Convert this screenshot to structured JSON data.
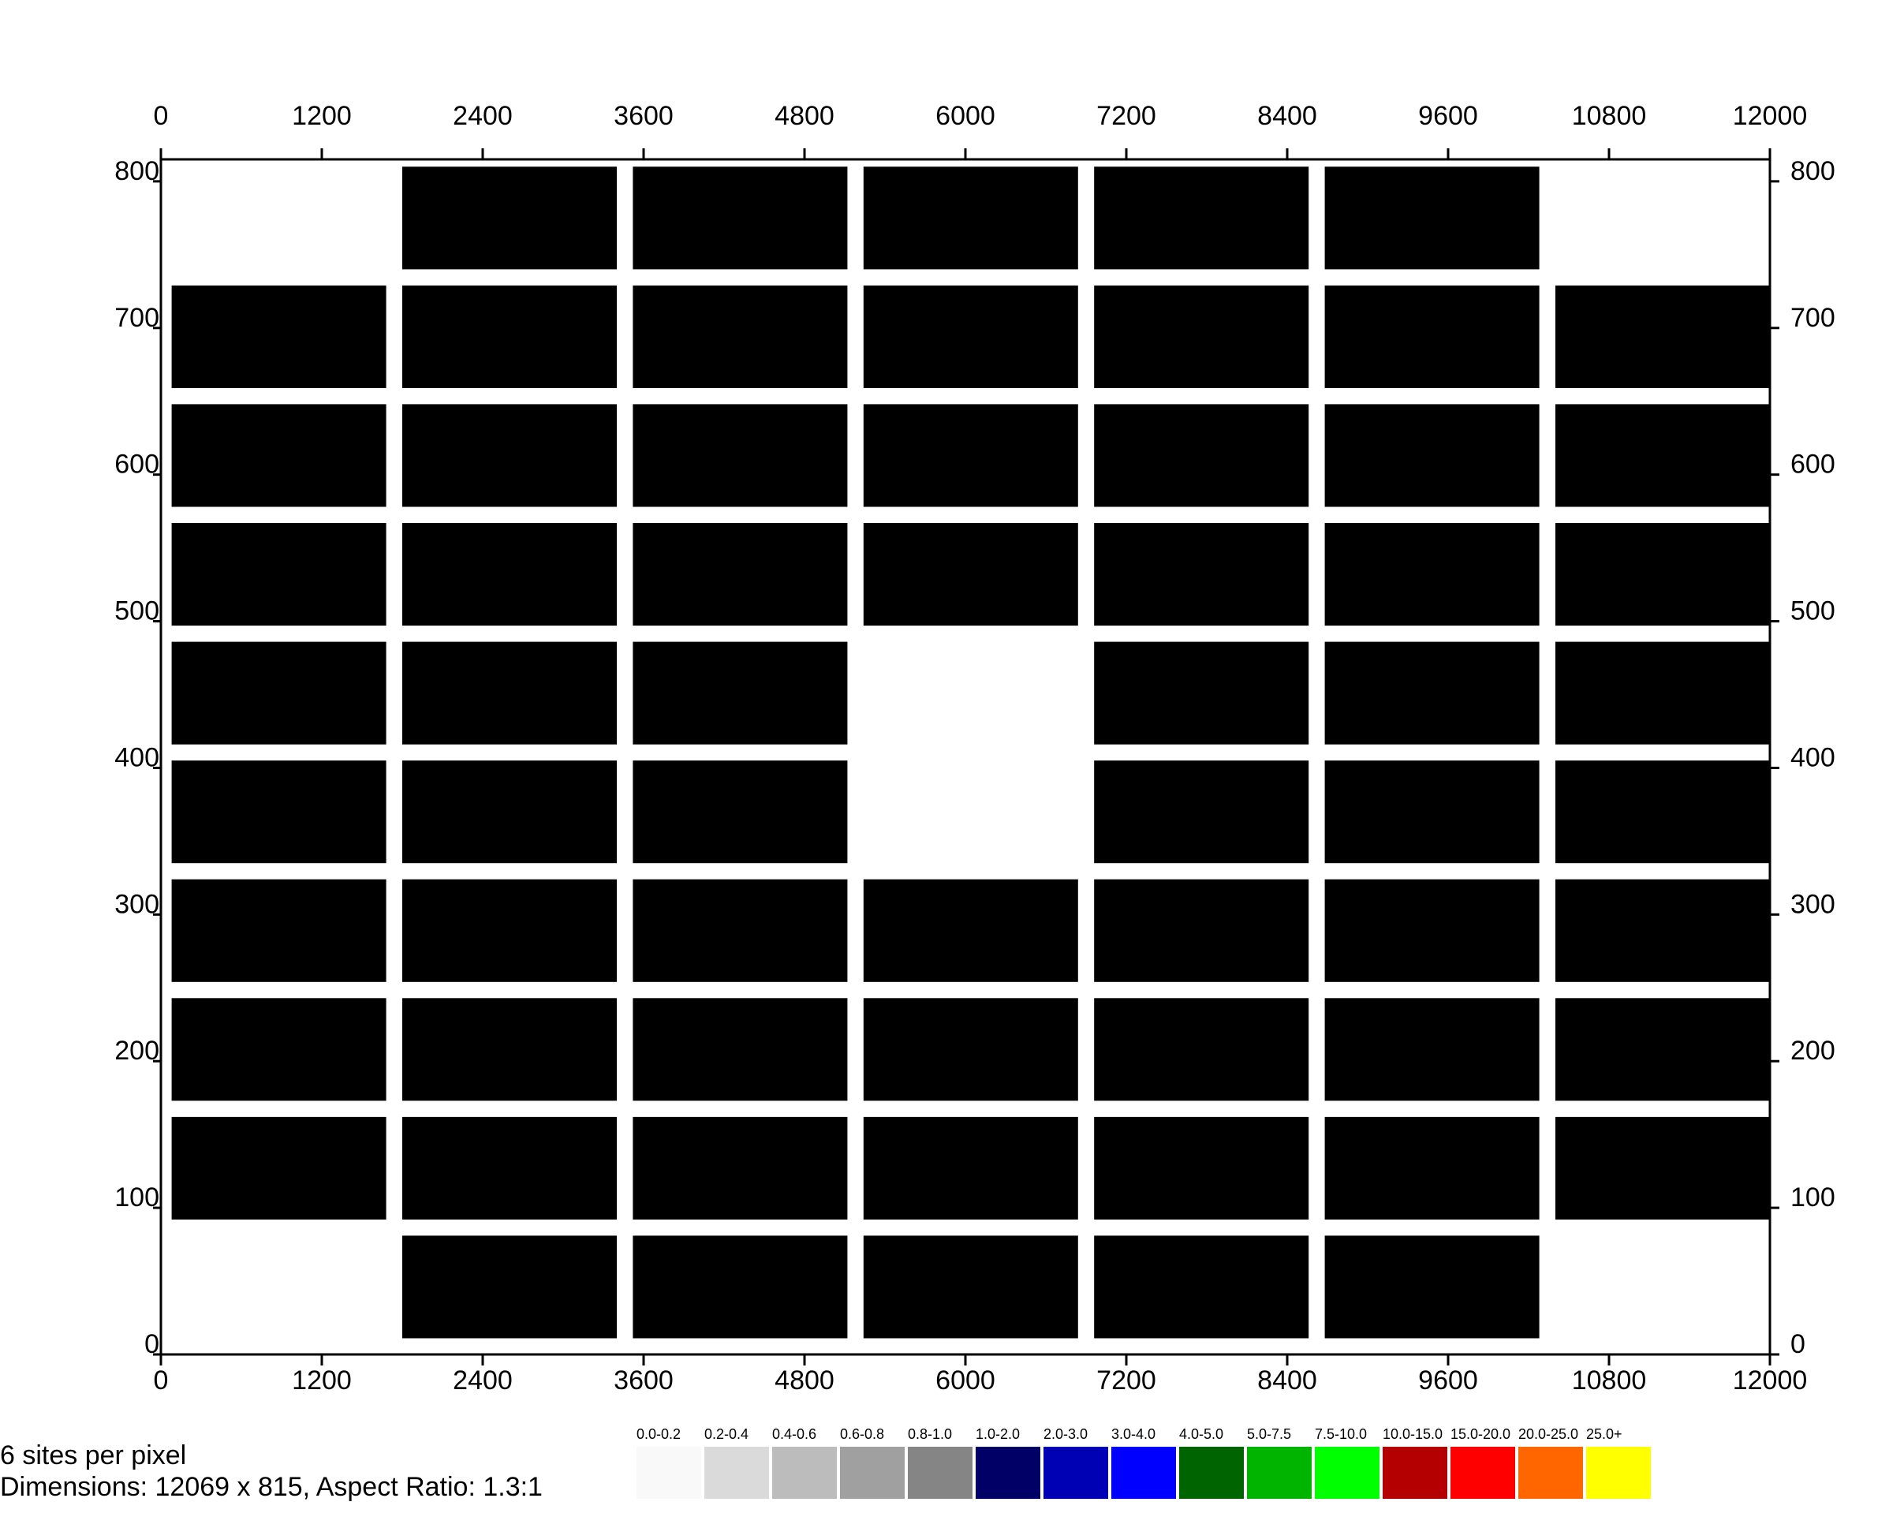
{
  "chart_data": {
    "type": "heatmap",
    "x_ticks": [
      "0",
      "1200",
      "2400",
      "3600",
      "4800",
      "6000",
      "7200",
      "8400",
      "9600",
      "10800",
      "12000"
    ],
    "y_ticks": [
      "0",
      "100",
      "200",
      "300",
      "400",
      "500",
      "600",
      "700",
      "800"
    ],
    "xlim": [
      0,
      12000
    ],
    "ylim": [
      0,
      815
    ],
    "block_color": "#000000",
    "blocks": [
      {
        "x0": 1800,
        "x1": 3400,
        "y0": 740,
        "y1": 810
      },
      {
        "x0": 3520,
        "x1": 5120,
        "y0": 740,
        "y1": 810
      },
      {
        "x0": 5240,
        "x1": 6840,
        "y0": 740,
        "y1": 810
      },
      {
        "x0": 6960,
        "x1": 8560,
        "y0": 740,
        "y1": 810
      },
      {
        "x0": 8680,
        "x1": 10280,
        "y0": 740,
        "y1": 810
      },
      {
        "x0": 80,
        "x1": 1680,
        "y0": 659,
        "y1": 729
      },
      {
        "x0": 1800,
        "x1": 3400,
        "y0": 659,
        "y1": 729
      },
      {
        "x0": 3520,
        "x1": 5120,
        "y0": 659,
        "y1": 729
      },
      {
        "x0": 5240,
        "x1": 6840,
        "y0": 659,
        "y1": 729
      },
      {
        "x0": 6960,
        "x1": 8560,
        "y0": 659,
        "y1": 729
      },
      {
        "x0": 8680,
        "x1": 10280,
        "y0": 659,
        "y1": 729
      },
      {
        "x0": 10400,
        "x1": 12000,
        "y0": 659,
        "y1": 729
      },
      {
        "x0": 80,
        "x1": 1680,
        "y0": 578,
        "y1": 648
      },
      {
        "x0": 1800,
        "x1": 3400,
        "y0": 578,
        "y1": 648
      },
      {
        "x0": 3520,
        "x1": 5120,
        "y0": 578,
        "y1": 648
      },
      {
        "x0": 5240,
        "x1": 6840,
        "y0": 578,
        "y1": 648
      },
      {
        "x0": 6960,
        "x1": 8560,
        "y0": 578,
        "y1": 648
      },
      {
        "x0": 8680,
        "x1": 10280,
        "y0": 578,
        "y1": 648
      },
      {
        "x0": 10400,
        "x1": 12000,
        "y0": 578,
        "y1": 648
      },
      {
        "x0": 80,
        "x1": 1680,
        "y0": 497,
        "y1": 567
      },
      {
        "x0": 1800,
        "x1": 3400,
        "y0": 497,
        "y1": 567
      },
      {
        "x0": 3520,
        "x1": 5120,
        "y0": 497,
        "y1": 567
      },
      {
        "x0": 5240,
        "x1": 6840,
        "y0": 497,
        "y1": 567
      },
      {
        "x0": 6960,
        "x1": 8560,
        "y0": 497,
        "y1": 567
      },
      {
        "x0": 8680,
        "x1": 10280,
        "y0": 497,
        "y1": 567
      },
      {
        "x0": 10400,
        "x1": 12000,
        "y0": 497,
        "y1": 567
      },
      {
        "x0": 80,
        "x1": 1680,
        "y0": 416,
        "y1": 486
      },
      {
        "x0": 1800,
        "x1": 3400,
        "y0": 416,
        "y1": 486
      },
      {
        "x0": 3520,
        "x1": 5120,
        "y0": 416,
        "y1": 486
      },
      {
        "x0": 6960,
        "x1": 8560,
        "y0": 416,
        "y1": 486
      },
      {
        "x0": 8680,
        "x1": 10280,
        "y0": 416,
        "y1": 486
      },
      {
        "x0": 10400,
        "x1": 12000,
        "y0": 416,
        "y1": 486
      },
      {
        "x0": 80,
        "x1": 1680,
        "y0": 335,
        "y1": 405
      },
      {
        "x0": 1800,
        "x1": 3400,
        "y0": 335,
        "y1": 405
      },
      {
        "x0": 3520,
        "x1": 5120,
        "y0": 335,
        "y1": 405
      },
      {
        "x0": 6960,
        "x1": 8560,
        "y0": 335,
        "y1": 405
      },
      {
        "x0": 8680,
        "x1": 10280,
        "y0": 335,
        "y1": 405
      },
      {
        "x0": 10400,
        "x1": 12000,
        "y0": 335,
        "y1": 405
      },
      {
        "x0": 80,
        "x1": 1680,
        "y0": 254,
        "y1": 324
      },
      {
        "x0": 1800,
        "x1": 3400,
        "y0": 254,
        "y1": 324
      },
      {
        "x0": 3520,
        "x1": 5120,
        "y0": 254,
        "y1": 324
      },
      {
        "x0": 5240,
        "x1": 6840,
        "y0": 254,
        "y1": 324
      },
      {
        "x0": 6960,
        "x1": 8560,
        "y0": 254,
        "y1": 324
      },
      {
        "x0": 8680,
        "x1": 10280,
        "y0": 254,
        "y1": 324
      },
      {
        "x0": 10400,
        "x1": 12000,
        "y0": 254,
        "y1": 324
      },
      {
        "x0": 80,
        "x1": 1680,
        "y0": 173,
        "y1": 243
      },
      {
        "x0": 1800,
        "x1": 3400,
        "y0": 173,
        "y1": 243
      },
      {
        "x0": 3520,
        "x1": 5120,
        "y0": 173,
        "y1": 243
      },
      {
        "x0": 5240,
        "x1": 6840,
        "y0": 173,
        "y1": 243
      },
      {
        "x0": 6960,
        "x1": 8560,
        "y0": 173,
        "y1": 243
      },
      {
        "x0": 8680,
        "x1": 10280,
        "y0": 173,
        "y1": 243
      },
      {
        "x0": 10400,
        "x1": 12000,
        "y0": 173,
        "y1": 243
      },
      {
        "x0": 80,
        "x1": 1680,
        "y0": 92,
        "y1": 162
      },
      {
        "x0": 1800,
        "x1": 3400,
        "y0": 92,
        "y1": 162
      },
      {
        "x0": 3520,
        "x1": 5120,
        "y0": 92,
        "y1": 162
      },
      {
        "x0": 5240,
        "x1": 6840,
        "y0": 92,
        "y1": 162
      },
      {
        "x0": 6960,
        "x1": 8560,
        "y0": 92,
        "y1": 162
      },
      {
        "x0": 8680,
        "x1": 10280,
        "y0": 92,
        "y1": 162
      },
      {
        "x0": 10400,
        "x1": 12000,
        "y0": 92,
        "y1": 162
      },
      {
        "x0": 1800,
        "x1": 3400,
        "y0": 11,
        "y1": 81
      },
      {
        "x0": 3520,
        "x1": 5120,
        "y0": 11,
        "y1": 81
      },
      {
        "x0": 5240,
        "x1": 6840,
        "y0": 11,
        "y1": 81
      },
      {
        "x0": 6960,
        "x1": 8560,
        "y0": 11,
        "y1": 81
      },
      {
        "x0": 8680,
        "x1": 10280,
        "y0": 11,
        "y1": 81
      }
    ],
    "legend": [
      {
        "label": "0.0-0.2",
        "color": "#f9f9f9"
      },
      {
        "label": "0.2-0.4",
        "color": "#dadada"
      },
      {
        "label": "0.4-0.6",
        "color": "#bcbcbc"
      },
      {
        "label": "0.6-0.8",
        "color": "#a0a0a0"
      },
      {
        "label": "0.8-1.0",
        "color": "#858585"
      },
      {
        "label": "1.0-2.0",
        "color": "#000066"
      },
      {
        "label": "2.0-3.0",
        "color": "#0000b4"
      },
      {
        "label": "3.0-4.0",
        "color": "#0000ff"
      },
      {
        "label": "4.0-5.0",
        "color": "#006400"
      },
      {
        "label": "5.0-7.5",
        "color": "#00b400"
      },
      {
        "label": "7.5-10.0",
        "color": "#00ff00"
      },
      {
        "label": "10.0-15.0",
        "color": "#b40000"
      },
      {
        "label": "15.0-20.0",
        "color": "#ff0000"
      },
      {
        "label": "20.0-25.0",
        "color": "#ff6600"
      },
      {
        "label": "25.0+",
        "color": "#ffff00"
      }
    ]
  },
  "footer": {
    "sites_line": "6  sites  per  pixel",
    "dimensions_line": "Dimensions:  12069  x  815,  Aspect  Ratio:  1.3:1"
  }
}
